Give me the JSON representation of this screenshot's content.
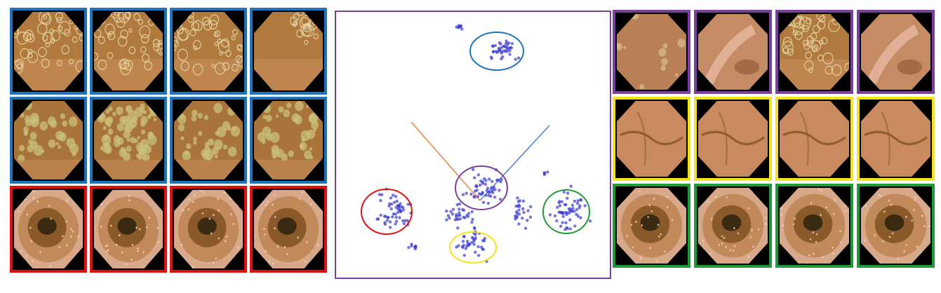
{
  "colors": {
    "blue": "#1e73be",
    "red": "#e01010",
    "purple": "#7b3fa0",
    "yellow": "#f5e31a",
    "green": "#1f9a3a",
    "points": "#3a3ad0",
    "axis_orange": "#f08040",
    "axis_blue": "#4a7fe0"
  },
  "left_grid": [
    {
      "group": "blue",
      "kind": "bubbles"
    },
    {
      "group": "blue",
      "kind": "bubbles"
    },
    {
      "group": "blue",
      "kind": "bubbles"
    },
    {
      "group": "blue",
      "kind": "bubbles-corner"
    },
    {
      "group": "blue",
      "kind": "debris"
    },
    {
      "group": "blue",
      "kind": "debris-heavy"
    },
    {
      "group": "blue",
      "kind": "debris"
    },
    {
      "group": "blue",
      "kind": "debris"
    },
    {
      "group": "red",
      "kind": "lumen"
    },
    {
      "group": "red",
      "kind": "lumen"
    },
    {
      "group": "red",
      "kind": "lumen"
    },
    {
      "group": "red",
      "kind": "lumen"
    }
  ],
  "right_grid": [
    {
      "group": "purple",
      "kind": "mixed"
    },
    {
      "group": "purple",
      "kind": "fold"
    },
    {
      "group": "purple",
      "kind": "bubbles"
    },
    {
      "group": "purple",
      "kind": "fold"
    },
    {
      "group": "yellow",
      "kind": "wall"
    },
    {
      "group": "yellow",
      "kind": "wall"
    },
    {
      "group": "yellow",
      "kind": "wall"
    },
    {
      "group": "yellow",
      "kind": "wall"
    },
    {
      "group": "green",
      "kind": "villi-lumen"
    },
    {
      "group": "green",
      "kind": "villi-lumen"
    },
    {
      "group": "green",
      "kind": "villi-lumen"
    },
    {
      "group": "green",
      "kind": "villi-lumen"
    }
  ],
  "scatter": {
    "clusters": [
      {
        "name": "blue",
        "cx": 706,
        "cy": 71,
        "rx": 38,
        "ry": 27
      },
      {
        "name": "purple",
        "cx": 684,
        "cy": 266,
        "rx": 37,
        "ry": 31
      },
      {
        "name": "red",
        "cx": 549,
        "cy": 300,
        "rx": 36,
        "ry": 32
      },
      {
        "name": "green",
        "cx": 805,
        "cy": 300,
        "rx": 33,
        "ry": 31
      },
      {
        "name": "yellow",
        "cx": 672,
        "cy": 351,
        "rx": 33,
        "ry": 22
      }
    ]
  }
}
